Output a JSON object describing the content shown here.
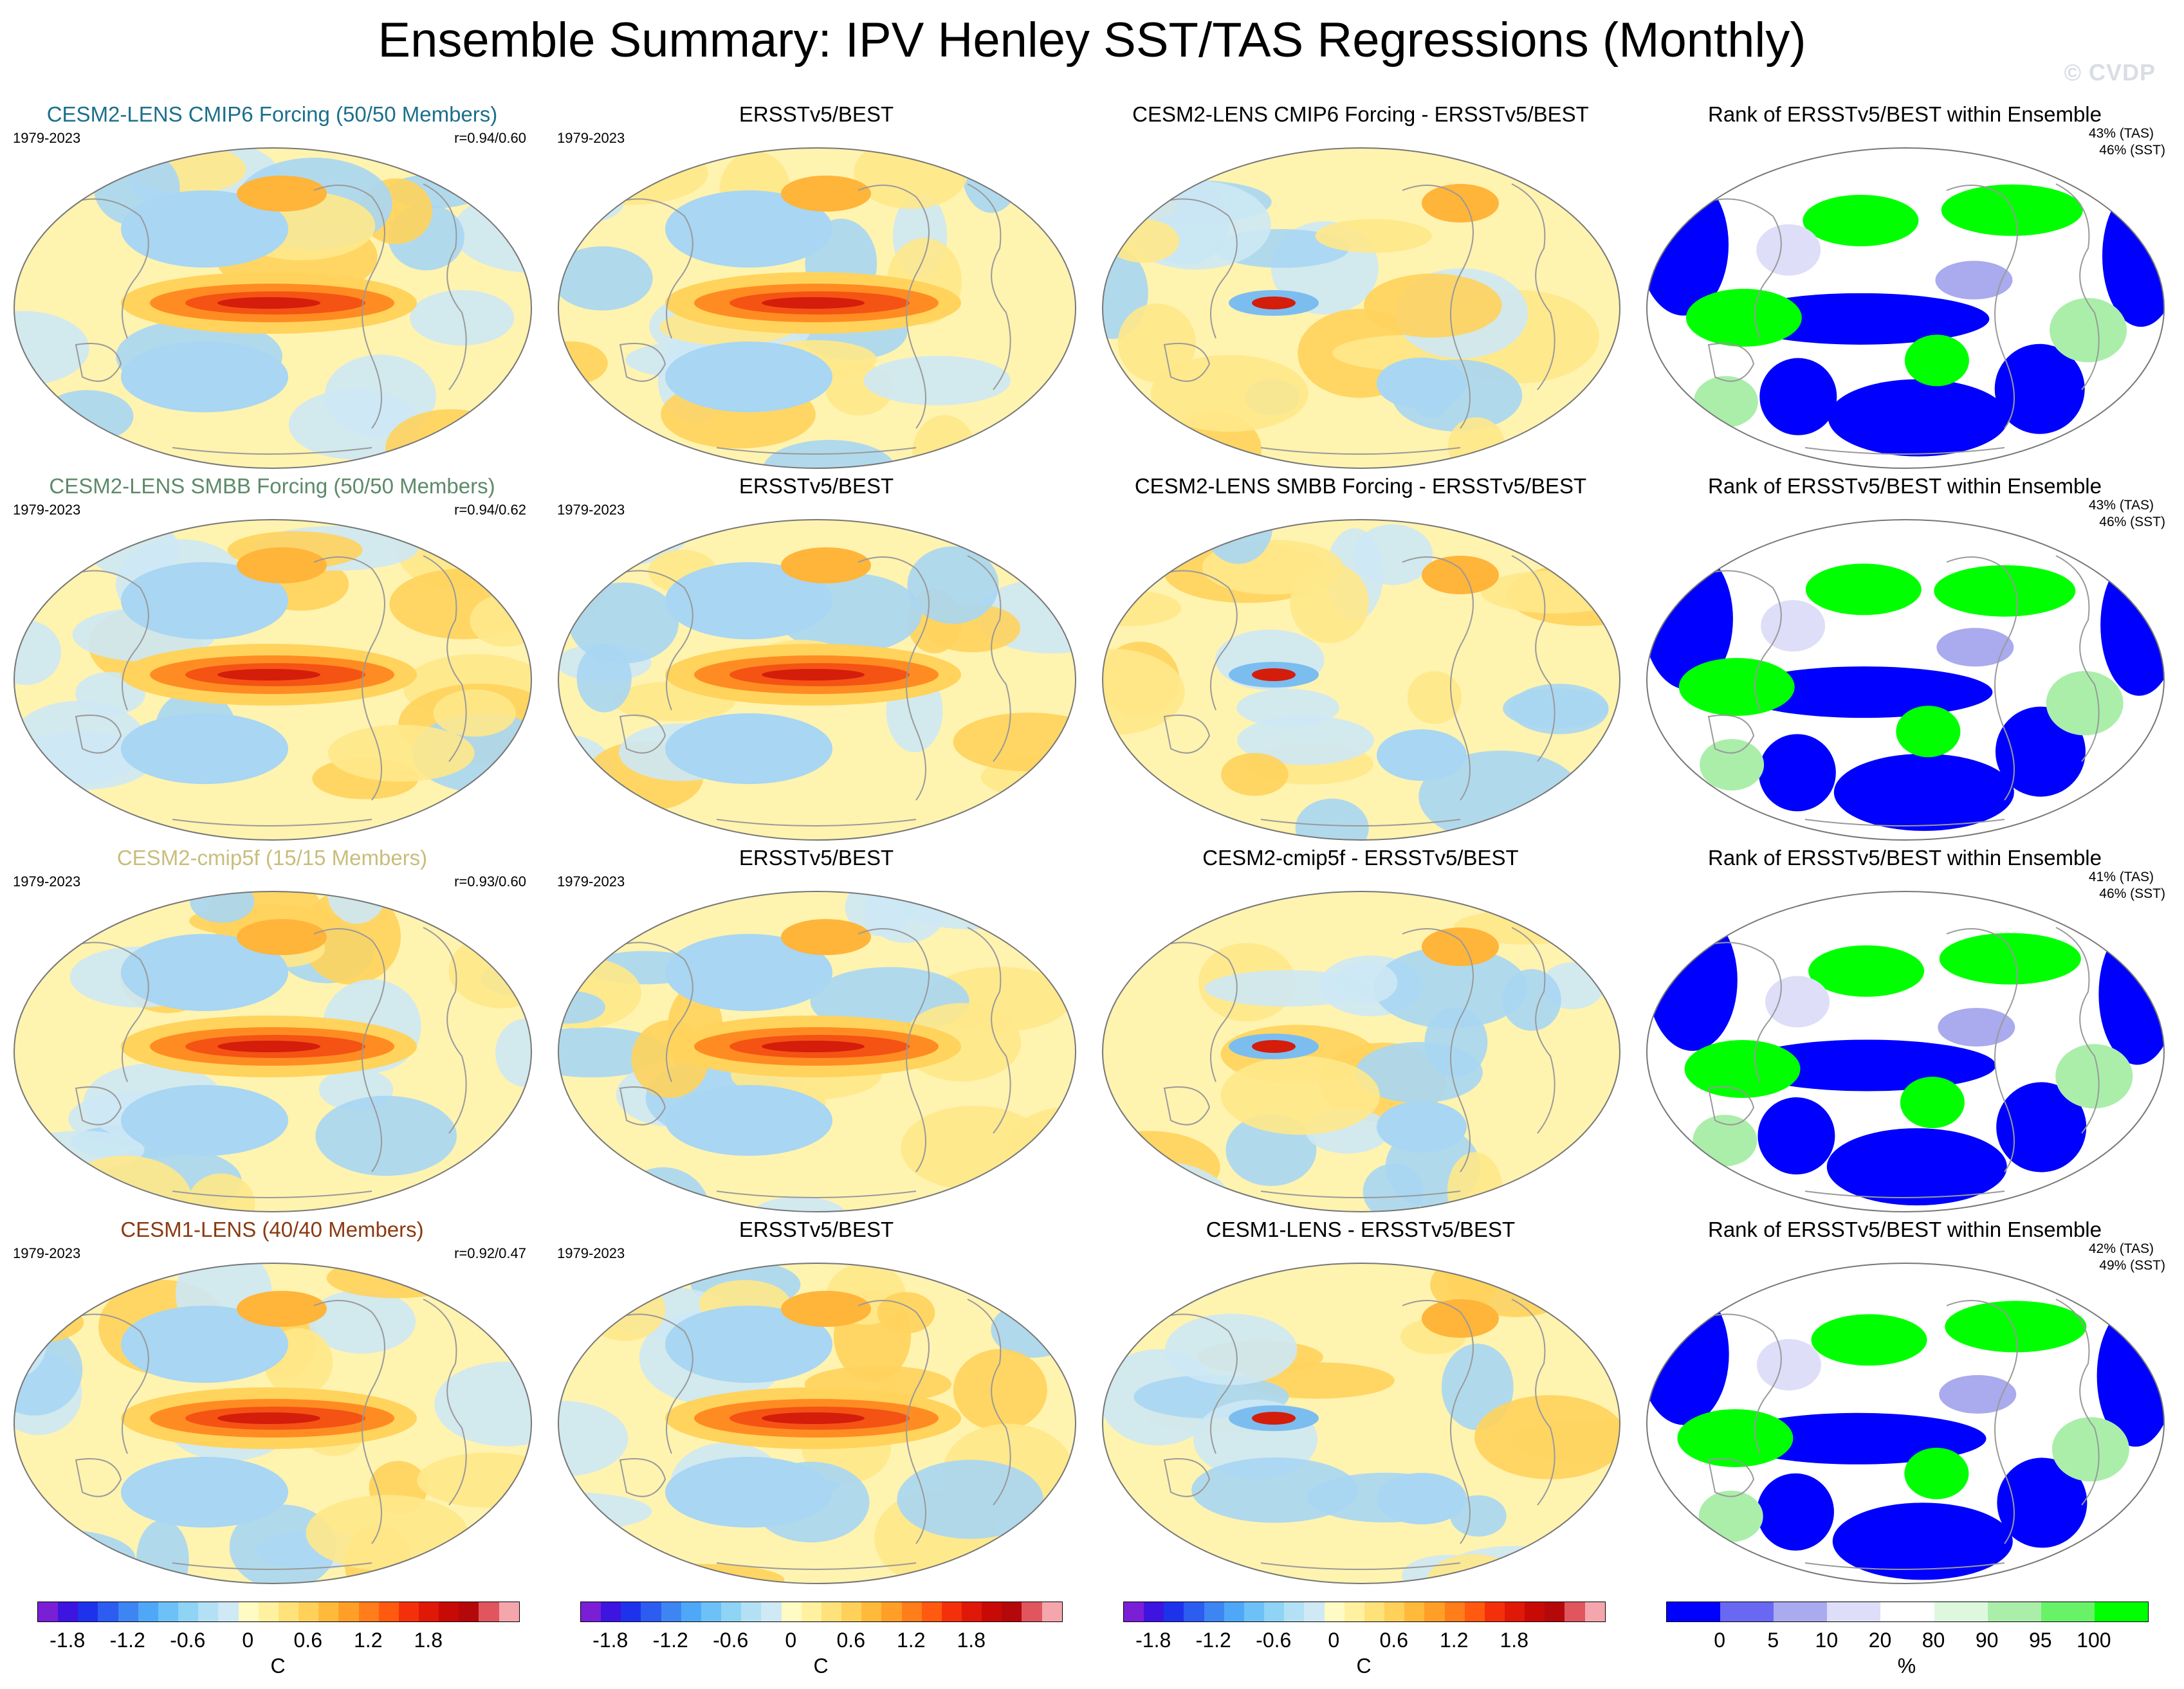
{
  "title": "Ensemble Summary: IPV Henley SST/TAS Regressions (Monthly)",
  "copyright": "© CVDP",
  "rows": [
    {
      "model_title": "CESM2-LENS CMIP6 Forcing (50/50 Members)",
      "model_title_color": "#1b6f8c",
      "period": "1979-2023",
      "correlation": "r=0.94/0.60",
      "obs_title": "ERSSTv5/BEST",
      "obs_period": "1979-2023",
      "diff_title": "CESM2-LENS CMIP6 Forcing - ERSSTv5/BEST",
      "rank_title": "Rank of ERSSTv5/BEST within Ensemble",
      "rank_tas": "43% (TAS)",
      "rank_sst": "46% (SST)"
    },
    {
      "model_title": "CESM2-LENS SMBB Forcing (50/50 Members)",
      "model_title_color": "#5d8a6a",
      "period": "1979-2023",
      "correlation": "r=0.94/0.62",
      "obs_title": "ERSSTv5/BEST",
      "obs_period": "1979-2023",
      "diff_title": "CESM2-LENS SMBB Forcing - ERSSTv5/BEST",
      "rank_title": "Rank of ERSSTv5/BEST within Ensemble",
      "rank_tas": "43% (TAS)",
      "rank_sst": "46% (SST)"
    },
    {
      "model_title": "CESM2-cmip5f (15/15 Members)",
      "model_title_color": "#c9bd7c",
      "period": "1979-2023",
      "correlation": "r=0.93/0.60",
      "obs_title": "ERSSTv5/BEST",
      "obs_period": "1979-2023",
      "diff_title": "CESM2-cmip5f - ERSSTv5/BEST",
      "rank_title": "Rank of ERSSTv5/BEST within Ensemble",
      "rank_tas": "41% (TAS)",
      "rank_sst": "46% (SST)"
    },
    {
      "model_title": "CESM1-LENS (40/40 Members)",
      "model_title_color": "#8b3a12",
      "period": "1979-2023",
      "correlation": "r=0.92/0.47",
      "obs_title": "ERSSTv5/BEST",
      "obs_period": "1979-2023",
      "diff_title": "CESM1-LENS - ERSSTv5/BEST",
      "rank_title": "Rank of ERSSTv5/BEST within Ensemble",
      "rank_tas": "42% (TAS)",
      "rank_sst": "49% (SST)"
    }
  ],
  "temp_colorbar": {
    "ticks": [
      "-1.8",
      "-1.2",
      "-0.6",
      "0",
      "0.6",
      "1.2",
      "1.8"
    ],
    "unit": "C",
    "colors": [
      "#7a1fd6",
      "#3d14e0",
      "#1e32ec",
      "#2c5cf0",
      "#3e85f4",
      "#4fa8f7",
      "#6cc1f7",
      "#8fd3f5",
      "#b3e0f5",
      "#cfe9f5",
      "#fffbc4",
      "#fff1a0",
      "#ffe27a",
      "#ffd15a",
      "#ffba3c",
      "#ff9f28",
      "#ff7d1a",
      "#ff5a10",
      "#f4300a",
      "#e01808",
      "#c70a06",
      "#b5080a",
      "#e1555e",
      "#f5a6ad"
    ]
  },
  "rank_colorbar": {
    "ticks": [
      "0",
      "5",
      "10",
      "20",
      "80",
      "90",
      "95",
      "100"
    ],
    "unit": "%",
    "colors": [
      "#0000ff",
      "#6868f2",
      "#aaaaee",
      "#dedef8",
      "#ffffff",
      "#def8de",
      "#aaeeaa",
      "#68f268",
      "#00ff00"
    ]
  }
}
